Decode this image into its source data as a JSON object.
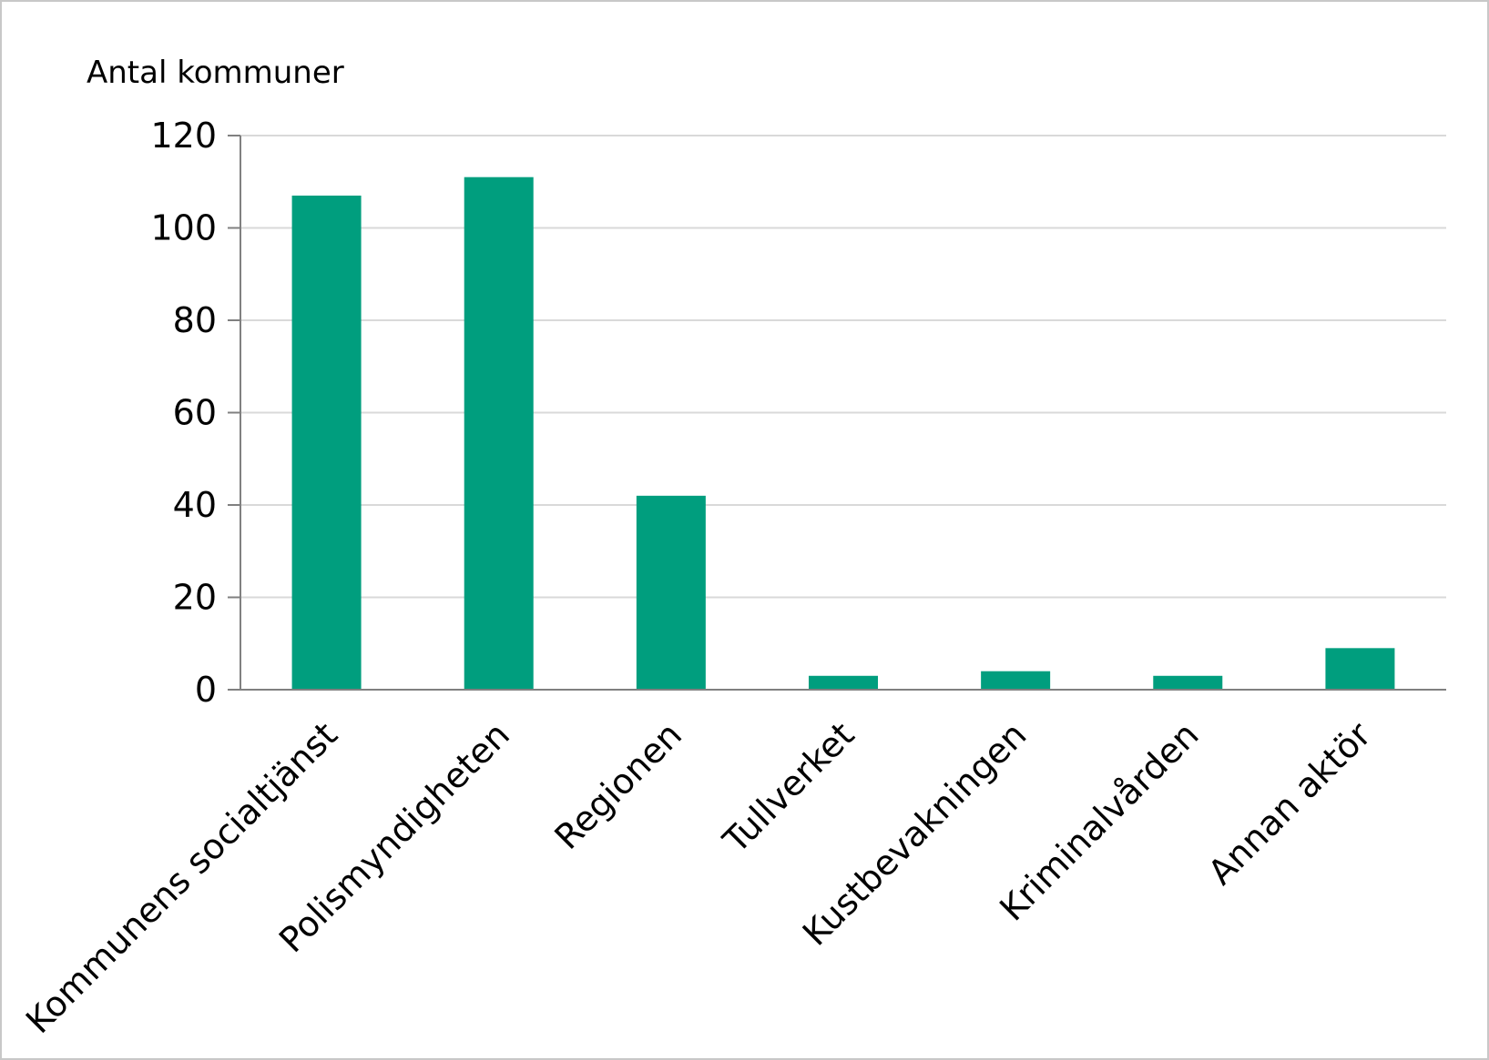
{
  "chart_data": {
    "type": "bar",
    "title": "",
    "xlabel": "",
    "ylabel": "Antal kommuner",
    "ylim": [
      0,
      120
    ],
    "yticks": [
      0,
      20,
      40,
      60,
      80,
      100,
      120
    ],
    "grid": true,
    "legend": "none",
    "bar_color": "#009e7e",
    "categories": [
      "Kommunens socialtjänst",
      "Polismyndigheten",
      "Regionen",
      "Tullverket",
      "Kustbevakningen",
      "Kriminalvården",
      "Annan aktör"
    ],
    "values": [
      107,
      111,
      42,
      3,
      4,
      3,
      9
    ]
  }
}
